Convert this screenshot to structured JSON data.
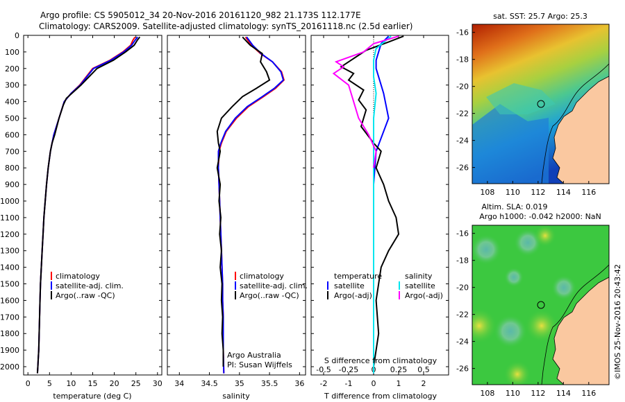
{
  "header": {
    "line1": "Argo profile: CS 5905012_34 20-Nov-2016 20161120_982 21.173S 112.177E",
    "line2": "Climatology: CARS2009. Satellite-adjusted climatology: synTS_20161118.nc (2.5d earlier)"
  },
  "colors": {
    "climatology": "#ff0000",
    "satellite": "#0000ff",
    "argo": "#000000",
    "sal_satellite": "#00e5ee",
    "sal_argo": "#ff00ff",
    "land": "#fac8a0"
  },
  "chart_data": [
    {
      "type": "line",
      "xlabel": "temperature (deg C)",
      "xlim": [
        -1,
        31
      ],
      "xticks": [
        0,
        5,
        10,
        15,
        20,
        25,
        30
      ],
      "ylim": [
        2050,
        0
      ],
      "yticks": [
        0,
        100,
        200,
        300,
        400,
        500,
        600,
        700,
        800,
        900,
        1000,
        1100,
        1200,
        1300,
        1400,
        1500,
        1600,
        1700,
        1800,
        1900,
        2000
      ],
      "legend": [
        "climatology",
        "satellite-adj. clim.",
        "Argo(..raw -QC)"
      ],
      "series": [
        {
          "name": "climatology",
          "color": "#ff0000",
          "x": [
            24.8,
            24.3,
            23.8,
            22.0,
            19.0,
            15.0,
            12.0,
            10.0,
            8.4,
            7.2,
            6.0,
            5.6,
            5.2,
            4.7,
            4.3,
            4.0,
            3.7,
            3.5,
            3.3,
            3.1,
            2.9,
            2.8,
            2.7,
            2.6,
            2.5,
            2.4,
            2.3,
            2.2
          ],
          "y": [
            10,
            30,
            60,
            100,
            150,
            200,
            300,
            350,
            400,
            500,
            600,
            650,
            700,
            800,
            900,
            1000,
            1100,
            1200,
            1300,
            1400,
            1500,
            1600,
            1700,
            1800,
            1900,
            1950,
            2000,
            2040
          ]
        },
        {
          "name": "satellite-adj. clim.",
          "color": "#0000ff",
          "x": [
            25.4,
            24.8,
            24.0,
            22.2,
            19.2,
            15.2,
            12.1,
            10.0,
            8.4,
            7.2,
            6.0,
            5.6,
            5.2,
            4.7,
            4.3,
            4.0,
            3.7,
            3.5,
            3.3,
            3.1,
            2.9,
            2.8,
            2.7,
            2.6,
            2.5,
            2.4,
            2.3,
            2.2
          ],
          "y": [
            10,
            30,
            60,
            100,
            150,
            200,
            300,
            350,
            400,
            500,
            600,
            650,
            700,
            800,
            900,
            1000,
            1100,
            1200,
            1300,
            1400,
            1500,
            1600,
            1700,
            1800,
            1900,
            1950,
            2000,
            2040
          ]
        },
        {
          "name": "Argo(..raw -QC)",
          "color": "#000000",
          "x": [
            25.9,
            25.3,
            24.6,
            22.6,
            19.8,
            16.0,
            12.3,
            8.9,
            8.2,
            7.2,
            6.2,
            5.6,
            5.2,
            4.7,
            4.3,
            4.0,
            3.7,
            3.5,
            3.3,
            3.1,
            2.9,
            2.8,
            2.7,
            2.6,
            2.5,
            2.4,
            2.3,
            2.2
          ],
          "y": [
            10,
            30,
            60,
            100,
            150,
            200,
            300,
            380,
            420,
            500,
            600,
            650,
            700,
            800,
            900,
            1000,
            1100,
            1200,
            1300,
            1400,
            1500,
            1600,
            1700,
            1800,
            1900,
            1950,
            2000,
            2040
          ]
        }
      ]
    },
    {
      "type": "line",
      "xlabel": "salinity",
      "xlim": [
        33.8,
        36.1
      ],
      "xticks": [
        34,
        34.5,
        35,
        35.5,
        36
      ],
      "ylim": [
        2050,
        0
      ],
      "legend": [
        "climatology",
        "satellite-adj. clim.",
        "Argo(..raw -QC)"
      ],
      "annotation": [
        "Argo Australia",
        "PI: Susan Wijffels"
      ],
      "series": [
        {
          "name": "climatology",
          "color": "#ff0000",
          "x": [
            35.1,
            35.2,
            35.35,
            35.55,
            35.7,
            35.74,
            35.6,
            35.4,
            35.15,
            34.95,
            34.78,
            34.7,
            34.66,
            34.65,
            34.66,
            34.67,
            34.68,
            34.69,
            34.7,
            34.71,
            34.72,
            34.72,
            34.73,
            34.73,
            34.73,
            34.74
          ],
          "y": [
            10,
            60,
            110,
            160,
            220,
            270,
            320,
            370,
            430,
            500,
            580,
            650,
            700,
            800,
            900,
            1000,
            1100,
            1200,
            1300,
            1400,
            1500,
            1600,
            1700,
            1800,
            1900,
            2040
          ]
        },
        {
          "name": "satellite-adj. clim.",
          "color": "#0000ff",
          "x": [
            35.12,
            35.22,
            35.36,
            35.55,
            35.69,
            35.73,
            35.58,
            35.38,
            35.13,
            34.93,
            34.77,
            34.69,
            34.65,
            34.65,
            34.66,
            34.67,
            34.68,
            34.69,
            34.7,
            34.71,
            34.72,
            34.72,
            34.73,
            34.73,
            34.73,
            34.74
          ],
          "y": [
            10,
            60,
            110,
            160,
            220,
            270,
            320,
            370,
            430,
            500,
            580,
            650,
            700,
            800,
            900,
            1000,
            1100,
            1200,
            1300,
            1400,
            1500,
            1600,
            1700,
            1800,
            1900,
            2040
          ]
        },
        {
          "name": "Argo(..raw -QC)",
          "color": "#000000",
          "x": [
            35.05,
            35.18,
            35.38,
            35.35,
            35.45,
            35.5,
            35.28,
            35.05,
            34.88,
            34.7,
            34.63,
            34.65,
            34.68,
            34.63,
            34.68,
            34.66,
            34.69,
            34.67,
            34.7,
            34.68,
            34.71,
            34.7,
            34.72,
            34.71,
            34.73,
            34.73
          ],
          "y": [
            10,
            60,
            110,
            160,
            220,
            270,
            320,
            370,
            430,
            500,
            580,
            650,
            700,
            800,
            900,
            1000,
            1100,
            1200,
            1300,
            1400,
            1500,
            1600,
            1700,
            1800,
            1900,
            2000
          ]
        }
      ]
    },
    {
      "type": "line",
      "xlabel": "T difference from climatology",
      "xlabel_top": "S difference from climatology",
      "xlim": [
        -2.5,
        3.0
      ],
      "xticks": [
        -2,
        -1,
        0,
        1,
        2
      ],
      "s_ticks": [
        -0.5,
        -0.25,
        0,
        0.25,
        0.5
      ],
      "s_tick_labels": [
        "-0.5",
        "-0.25",
        "0",
        "0.25",
        "0.5"
      ],
      "ylim": [
        2050,
        0
      ],
      "legend_titles": [
        "temperature",
        "salinity"
      ],
      "legend": [
        "satellite",
        "Argo(-adj)",
        "satellite",
        "Argo(-adj)"
      ],
      "series": [
        {
          "name": "satellite",
          "color": "#0000ff",
          "x": [
            0.6,
            0.3,
            0.2,
            0.1,
            0.1,
            0.2,
            0.3,
            0.4,
            0.6,
            0.3,
            0.1,
            0.05,
            0.0,
            0.0,
            0.0,
            0.0,
            0.0,
            0.0,
            0.0
          ],
          "y": [
            5,
            50,
            100,
            150,
            200,
            250,
            300,
            350,
            500,
            620,
            700,
            800,
            900,
            1000,
            1200,
            1400,
            1600,
            1800,
            2040
          ]
        },
        {
          "name": "Argo(-adj)",
          "color": "#000000",
          "x": [
            1.2,
            0.6,
            -0.3,
            -1.3,
            -0.8,
            -1.0,
            -0.4,
            -0.6,
            -0.3,
            -0.5,
            0.0,
            0.3,
            0.1,
            0.4,
            0.6,
            0.9,
            1.0,
            0.6,
            0.3,
            0.1,
            0.2,
            0.0
          ],
          "y": [
            5,
            40,
            90,
            190,
            230,
            270,
            330,
            390,
            450,
            550,
            650,
            700,
            800,
            900,
            1000,
            1100,
            1200,
            1300,
            1400,
            1600,
            1800,
            2000
          ]
        },
        {
          "name": "satellite",
          "color": "#00e5ee",
          "x": [
            0.7,
            0.1,
            0.0,
            0.0,
            0.1,
            0.0,
            0.0,
            0.0,
            0.0,
            0.0,
            0.0,
            0.0
          ],
          "y": [
            5,
            80,
            150,
            250,
            350,
            500,
            700,
            900,
            1200,
            1500,
            1800,
            2040
          ]
        },
        {
          "name": "Argo(-adj)",
          "color": "#ff00ff",
          "x": [
            1.0,
            0.0,
            -0.4,
            -1.5,
            -1.2,
            -1.6,
            -1.0,
            -0.8,
            -0.6,
            -0.2,
            0.1,
            0.0
          ],
          "y": [
            5,
            50,
            100,
            160,
            190,
            230,
            300,
            400,
            500,
            600,
            700,
            800
          ]
        }
      ]
    },
    {
      "type": "heatmap",
      "title": "sat. SST: 25.7  Argo: 25.3",
      "xlim": [
        106.8,
        117.6
      ],
      "ylim": [
        -27.2,
        -15.4
      ],
      "xticks": [
        108,
        110,
        112,
        114,
        116
      ],
      "yticks": [
        -16,
        -18,
        -20,
        -22,
        -24,
        -26
      ],
      "marker": [
        112.177,
        -21.173
      ]
    },
    {
      "type": "heatmap",
      "title": "Altim. SLA: 0.019",
      "subtitle": "Argo h1000: -0.042 h2000: NaN",
      "xlim": [
        106.8,
        117.6
      ],
      "ylim": [
        -27.2,
        -15.4
      ],
      "xticks": [
        108,
        110,
        112,
        114,
        116
      ],
      "yticks": [
        -16,
        -18,
        -20,
        -22,
        -24,
        -26
      ],
      "marker": [
        112.177,
        -21.173
      ]
    }
  ],
  "credit": "©IMOS 25-Nov-2016 20:43:42"
}
